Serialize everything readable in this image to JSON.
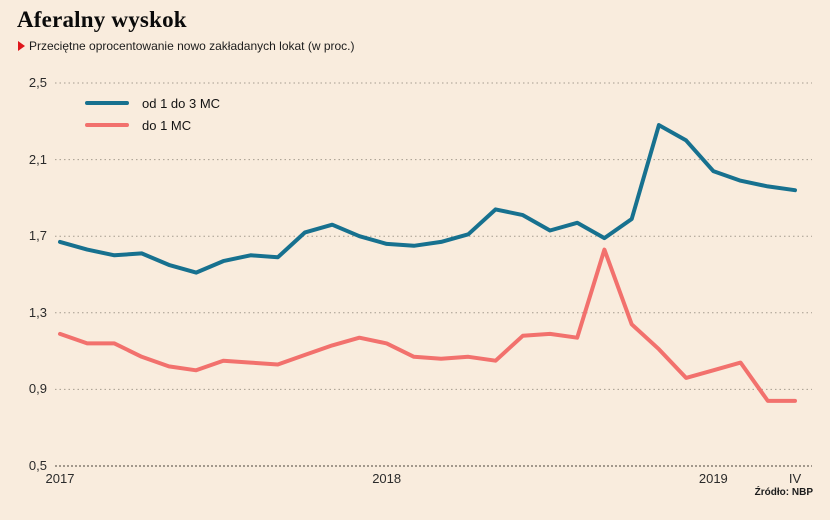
{
  "header": {
    "title": "Aferalny wyskok",
    "subtitle": "Przeciętne oprocentowanie nowo zakładanych lokat (w proc.)"
  },
  "source": "Źródło: NBP",
  "colors": {
    "background": "#f9ecdd",
    "series_1": "#17718f",
    "series_2": "#f2716d",
    "grid": "#a59c8f",
    "baseline": "#4a443c",
    "text": "#1c1c1c",
    "marker": "#df161b"
  },
  "chart_data": {
    "type": "line",
    "title": "Aferalny wyskok",
    "subtitle": "Przeciętne oprocentowanie nowo zakładanych lokat (w proc.)",
    "x_unit": "month",
    "categories": [
      "2017-01",
      "2017-02",
      "2017-03",
      "2017-04",
      "2017-05",
      "2017-06",
      "2017-07",
      "2017-08",
      "2017-09",
      "2017-10",
      "2017-11",
      "2017-12",
      "2018-01",
      "2018-02",
      "2018-03",
      "2018-04",
      "2018-05",
      "2018-06",
      "2018-07",
      "2018-08",
      "2018-09",
      "2018-10",
      "2018-11",
      "2018-12",
      "2019-01",
      "2019-02",
      "2019-03",
      "2019-04"
    ],
    "series": [
      {
        "name": "od 1 do 3 MC",
        "color": "#17718f",
        "values": [
          1.67,
          1.63,
          1.6,
          1.61,
          1.55,
          1.51,
          1.57,
          1.6,
          1.59,
          1.72,
          1.76,
          1.7,
          1.66,
          1.65,
          1.67,
          1.71,
          1.84,
          1.81,
          1.73,
          1.77,
          1.69,
          1.79,
          2.28,
          2.2,
          2.04,
          1.99,
          1.96,
          1.94
        ]
      },
      {
        "name": "do 1 MC",
        "color": "#f2716d",
        "values": [
          1.19,
          1.14,
          1.14,
          1.07,
          1.02,
          1.0,
          1.05,
          1.04,
          1.03,
          1.08,
          1.13,
          1.17,
          1.14,
          1.07,
          1.06,
          1.07,
          1.05,
          1.18,
          1.19,
          1.17,
          1.63,
          1.24,
          1.11,
          0.96,
          1.0,
          1.04,
          0.84,
          0.84
        ]
      }
    ],
    "ylim": [
      0.5,
      2.5
    ],
    "yticks": [
      {
        "label": "2,5",
        "value": 2.5
      },
      {
        "label": "2,1",
        "value": 2.1
      },
      {
        "label": "1,7",
        "value": 1.7
      },
      {
        "label": "1,3",
        "value": 1.3
      },
      {
        "label": "0,9",
        "value": 0.9
      },
      {
        "label": "0,5",
        "value": 0.5
      }
    ],
    "xticks": [
      {
        "label": "2017",
        "index": 0
      },
      {
        "label": "2018",
        "index": 12
      },
      {
        "label": "2019",
        "index": 24
      },
      {
        "label": "IV",
        "index": 27
      }
    ],
    "grid": "horizontal-dotted",
    "legend_position": "top-left-inside"
  }
}
